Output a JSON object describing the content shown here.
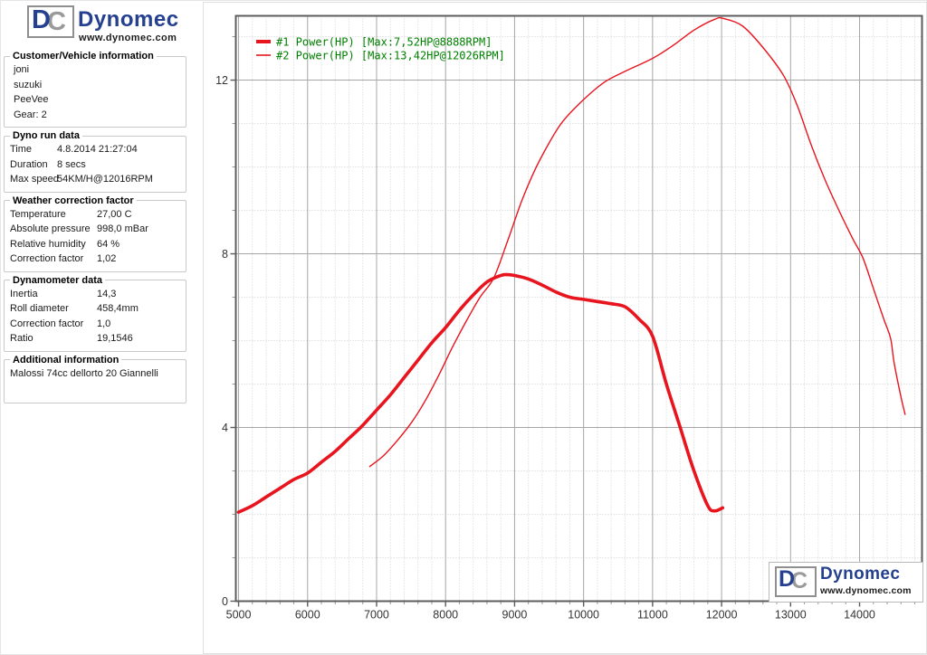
{
  "logo": {
    "d": "D",
    "c": "C",
    "name": "Dynomec",
    "url": "www.dynomec.com",
    "brand_blue": "#25408f",
    "brand_gray": "#9a9a9a"
  },
  "sidebar": {
    "sections": [
      {
        "title": "Customer/Vehicle information",
        "lines": [
          "joni",
          "suzuki",
          "PeeVee",
          "Gear: 2"
        ]
      },
      {
        "title": "Dyno run data",
        "rows": [
          [
            "Time",
            "4.8.2014 21:27:04"
          ],
          [
            "Duration",
            "8 secs"
          ],
          [
            "Max speed",
            "54KM/H@12016RPM"
          ]
        ]
      },
      {
        "title": "Weather correction factor",
        "rows": [
          [
            "Temperature",
            "27,00 C"
          ],
          [
            "Absolute pressure",
            "998,0 mBar"
          ],
          [
            "Relative humidity",
            "64 %"
          ],
          [
            "Correction factor",
            "1,02"
          ]
        ]
      },
      {
        "title": "Dynamometer data",
        "rows": [
          [
            "Inertia",
            "14,3"
          ],
          [
            "Roll diameter",
            "458,4mm"
          ],
          [
            "Correction factor",
            "1,0"
          ],
          [
            "Ratio",
            "19,1546"
          ]
        ]
      },
      {
        "title": "Additional information",
        "lines": [
          "Malossi 74cc dellorto 20 Giannelli"
        ]
      }
    ]
  },
  "chart_data": {
    "type": "line",
    "title": "",
    "x_axis": {
      "min": 4960,
      "max": 14905,
      "major_step": 1000,
      "minor_step": 200,
      "tick_labels": [
        5000,
        6000,
        7000,
        8000,
        9000,
        10000,
        11000,
        12000,
        13000,
        14000
      ]
    },
    "y_axis": {
      "min": 0,
      "max": 13.48,
      "major_step": 4,
      "minor_step": 1,
      "tick_labels": [
        0,
        4,
        8,
        12
      ]
    },
    "grid": true,
    "legend_position": "top-left",
    "legend_text_color": "#008000",
    "curve_color": "#e8141e",
    "legend_entries": [
      "#1 Power(HP)  [Max:7,52HP@8888RPM]",
      "#2 Power(HP)  [Max:13,42HP@12026RPM]"
    ],
    "series": [
      {
        "name": "#1 Power(HP)",
        "max": "7,52HP@8888RPM",
        "width": 3.6,
        "points": [
          [
            5000,
            2.05
          ],
          [
            5200,
            2.2
          ],
          [
            5400,
            2.4
          ],
          [
            5600,
            2.6
          ],
          [
            5800,
            2.8
          ],
          [
            6000,
            2.95
          ],
          [
            6200,
            3.2
          ],
          [
            6400,
            3.45
          ],
          [
            6600,
            3.75
          ],
          [
            6800,
            4.05
          ],
          [
            7000,
            4.4
          ],
          [
            7200,
            4.75
          ],
          [
            7400,
            5.15
          ],
          [
            7600,
            5.55
          ],
          [
            7800,
            5.95
          ],
          [
            8000,
            6.3
          ],
          [
            8200,
            6.7
          ],
          [
            8400,
            7.05
          ],
          [
            8600,
            7.35
          ],
          [
            8800,
            7.5
          ],
          [
            8888,
            7.52
          ],
          [
            9000,
            7.5
          ],
          [
            9200,
            7.42
          ],
          [
            9400,
            7.28
          ],
          [
            9600,
            7.12
          ],
          [
            9800,
            7.0
          ],
          [
            10000,
            6.95
          ],
          [
            10200,
            6.9
          ],
          [
            10400,
            6.85
          ],
          [
            10600,
            6.78
          ],
          [
            10800,
            6.5
          ],
          [
            11000,
            6.1
          ],
          [
            11200,
            5.0
          ],
          [
            11400,
            4.0
          ],
          [
            11600,
            3.0
          ],
          [
            11800,
            2.2
          ],
          [
            11900,
            2.08
          ],
          [
            12016,
            2.15
          ]
        ]
      },
      {
        "name": "#2 Power(HP)",
        "max": "13,42HP@12026RPM",
        "width": 1.4,
        "points": [
          [
            6900,
            3.1
          ],
          [
            7100,
            3.35
          ],
          [
            7300,
            3.7
          ],
          [
            7500,
            4.1
          ],
          [
            7700,
            4.6
          ],
          [
            7900,
            5.2
          ],
          [
            8100,
            5.85
          ],
          [
            8300,
            6.45
          ],
          [
            8500,
            7.0
          ],
          [
            8700,
            7.45
          ],
          [
            8900,
            8.3
          ],
          [
            9100,
            9.2
          ],
          [
            9300,
            9.95
          ],
          [
            9500,
            10.55
          ],
          [
            9700,
            11.05
          ],
          [
            10000,
            11.55
          ],
          [
            10300,
            11.95
          ],
          [
            10600,
            12.2
          ],
          [
            11000,
            12.5
          ],
          [
            11300,
            12.8
          ],
          [
            11600,
            13.15
          ],
          [
            11900,
            13.4
          ],
          [
            12026,
            13.42
          ],
          [
            12300,
            13.25
          ],
          [
            12600,
            12.75
          ],
          [
            12900,
            12.1
          ],
          [
            13100,
            11.4
          ],
          [
            13300,
            10.5
          ],
          [
            13500,
            9.7
          ],
          [
            13700,
            9.0
          ],
          [
            13900,
            8.35
          ],
          [
            14050,
            7.9
          ],
          [
            14200,
            7.2
          ],
          [
            14350,
            6.5
          ],
          [
            14450,
            6.05
          ],
          [
            14500,
            5.5
          ],
          [
            14600,
            4.7
          ],
          [
            14660,
            4.3
          ]
        ]
      }
    ]
  }
}
